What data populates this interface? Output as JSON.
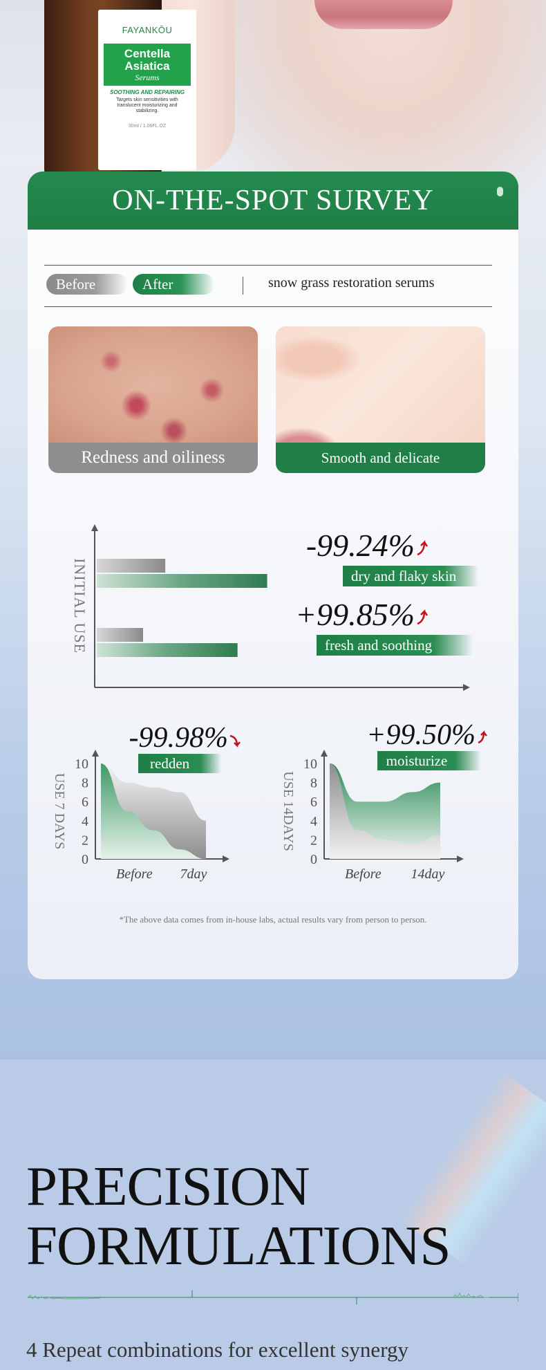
{
  "product": {
    "brand": "FAYANKŌU",
    "name": "Centella Asiatica",
    "type": "Serums",
    "tagline": "SOOTHING AND REPAIRING",
    "description": "Targets skin sensitivities with translucent moisturizing and stabilizing.",
    "volume": "30ml / 1.06FL.OZ"
  },
  "survey": {
    "title": "ON-THE-SPOT SURVEY",
    "before_label": "Before",
    "after_label": "After",
    "product_label": "snow grass restoration serums",
    "before_caption": "Redness and oiliness",
    "after_caption": "Smooth and delicate",
    "disclaimer": "*The above data comes from in-house labs, actual results vary from person to person.",
    "colors": {
      "green": "#1f7f47",
      "gray": "#8e8e8e",
      "red": "#c0141c"
    }
  },
  "chart_data": [
    {
      "type": "bar",
      "ylabel": "INITIAL USE",
      "groups": [
        {
          "stat": "-99.24%",
          "label": "dry and flaky skin",
          "values": [
            0.37,
            0.92
          ]
        },
        {
          "stat": "+99.85%",
          "label": "fresh and soothing",
          "values": [
            0.25,
            0.76
          ]
        }
      ]
    },
    {
      "type": "area",
      "ylabel": "USE 7 DAYS",
      "stat": "-99.98%",
      "label": "redden",
      "yticks": [
        "10",
        "8",
        "6",
        "4",
        "2",
        "0"
      ],
      "ylim": [
        0,
        10
      ],
      "xticks": [
        "Before",
        "7day"
      ],
      "series": [
        {
          "values": [
            10,
            8,
            7.5,
            7,
            4
          ]
        },
        {
          "values": [
            10,
            5,
            3,
            1,
            0
          ]
        }
      ]
    },
    {
      "type": "area",
      "ylabel": "USE 14DAYS",
      "stat": "+99.50%",
      "label": "moisturize",
      "yticks": [
        "10",
        "8",
        "6",
        "4",
        "2",
        "0"
      ],
      "ylim": [
        0,
        10
      ],
      "xticks": [
        "Before",
        "14day"
      ],
      "series": [
        {
          "values": [
            10,
            6,
            6,
            7,
            8
          ]
        },
        {
          "values": [
            10,
            3,
            2,
            1.5,
            2.5
          ]
        }
      ]
    }
  ],
  "section2": {
    "title_line1": "PRECISION",
    "title_line2": "FORMULATIONS",
    "subtitle": "4 Repeat combinations for excellent synergy"
  }
}
